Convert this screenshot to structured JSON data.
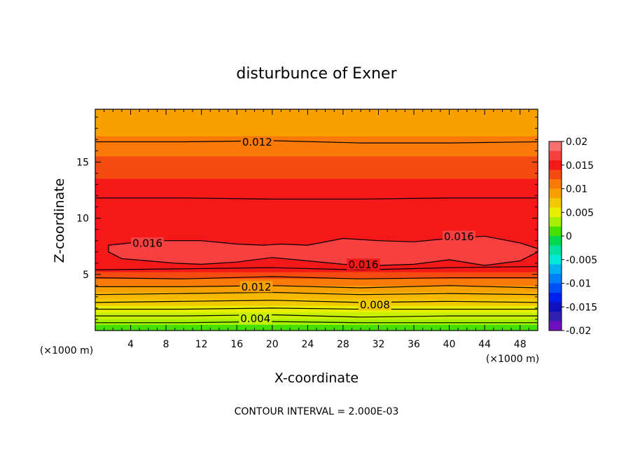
{
  "chart_data": {
    "type": "contour",
    "title": "disturbunce of Exner",
    "xlabel": "X-coordinate",
    "ylabel": "Z-coordinate",
    "x_unit": "(×1000 m)",
    "x_ticks": [
      4,
      8,
      12,
      16,
      20,
      24,
      28,
      32,
      36,
      40,
      44,
      48
    ],
    "y_ticks": [
      5,
      10,
      15
    ],
    "xlim": [
      0,
      50
    ],
    "ylim": [
      0,
      19.7
    ],
    "footer": "CONTOUR INTERVAL = 2.000E-03",
    "contour_interval": 0.002,
    "colorbar": {
      "ticks": [
        "0.02",
        "0.015",
        "0.01",
        "0.005",
        "0",
        "-0.005",
        "-0.01",
        "-0.015",
        "-0.02"
      ],
      "bands": [
        {
          "from": 0.018,
          "to": 0.02,
          "color": "#f67070"
        },
        {
          "from": 0.016,
          "to": 0.018,
          "color": "#f64040"
        },
        {
          "from": 0.014,
          "to": 0.016,
          "color": "#f41818"
        },
        {
          "from": 0.012,
          "to": 0.014,
          "color": "#f54a10"
        },
        {
          "from": 0.01,
          "to": 0.012,
          "color": "#f97a08"
        },
        {
          "from": 0.008,
          "to": 0.01,
          "color": "#f8a000"
        },
        {
          "from": 0.006,
          "to": 0.008,
          "color": "#f2c800"
        },
        {
          "from": 0.004,
          "to": 0.006,
          "color": "#e8f000"
        },
        {
          "from": 0.002,
          "to": 0.004,
          "color": "#a4f000"
        },
        {
          "from": 0.0,
          "to": 0.002,
          "color": "#46e000"
        },
        {
          "from": -0.002,
          "to": 0.0,
          "color": "#00d850"
        },
        {
          "from": -0.004,
          "to": -0.002,
          "color": "#00e0a0"
        },
        {
          "from": -0.006,
          "to": -0.004,
          "color": "#00e8d8"
        },
        {
          "from": -0.008,
          "to": -0.006,
          "color": "#00b0f0"
        },
        {
          "from": -0.01,
          "to": -0.008,
          "color": "#0080f8"
        },
        {
          "from": -0.012,
          "to": -0.01,
          "color": "#0050f8"
        },
        {
          "from": -0.014,
          "to": -0.012,
          "color": "#0020f0"
        },
        {
          "from": -0.016,
          "to": -0.014,
          "color": "#1010c0"
        },
        {
          "from": -0.018,
          "to": -0.016,
          "color": "#3020b0"
        },
        {
          "from": -0.02,
          "to": -0.018,
          "color": "#7010c0"
        }
      ]
    },
    "field_layers": [
      {
        "z_from": 17.3,
        "z_to": 19.7,
        "color": "#f8a000"
      },
      {
        "z_from": 15.5,
        "z_to": 17.3,
        "color": "#f97a08"
      },
      {
        "z_from": 13.5,
        "z_to": 15.5,
        "color": "#f54a10"
      },
      {
        "z_from": 5.2,
        "z_to": 13.5,
        "color": "#f41818"
      },
      {
        "z_from": 4.6,
        "z_to": 5.2,
        "color": "#f54a10"
      },
      {
        "z_from": 4.0,
        "z_to": 4.6,
        "color": "#f97a08"
      },
      {
        "z_from": 3.4,
        "z_to": 4.0,
        "color": "#f8a000"
      },
      {
        "z_from": 2.8,
        "z_to": 3.4,
        "color": "#f8b800"
      },
      {
        "z_from": 2.2,
        "z_to": 2.8,
        "color": "#f2c800"
      },
      {
        "z_from": 1.6,
        "z_to": 2.2,
        "color": "#e8f000"
      },
      {
        "z_from": 1.0,
        "z_to": 1.6,
        "color": "#c8f000"
      },
      {
        "z_from": 0.5,
        "z_to": 1.0,
        "color": "#a4f000"
      },
      {
        "z_from": 0.0,
        "z_to": 0.5,
        "color": "#46e000"
      }
    ],
    "high_region": {
      "value": 0.016,
      "color": "#f64040",
      "upper": [
        [
          1.5,
          7.6
        ],
        [
          4,
          7.8
        ],
        [
          8,
          8.0
        ],
        [
          12,
          8.0
        ],
        [
          16,
          7.7
        ],
        [
          19,
          7.6
        ],
        [
          21,
          7.7
        ],
        [
          24,
          7.6
        ],
        [
          28,
          8.2
        ],
        [
          32,
          8.0
        ],
        [
          36,
          7.9
        ],
        [
          40,
          8.2
        ],
        [
          44,
          8.4
        ],
        [
          48,
          7.8
        ],
        [
          50,
          7.3
        ]
      ],
      "lower": [
        [
          50,
          7.0
        ],
        [
          48,
          6.2
        ],
        [
          44,
          5.8
        ],
        [
          40,
          6.3
        ],
        [
          36,
          5.9
        ],
        [
          32,
          5.8
        ],
        [
          28,
          5.9
        ],
        [
          24,
          6.2
        ],
        [
          20,
          6.5
        ],
        [
          16,
          6.1
        ],
        [
          12,
          5.9
        ],
        [
          9,
          6.0
        ],
        [
          6,
          6.2
        ],
        [
          3,
          6.4
        ],
        [
          1.5,
          7.0
        ]
      ]
    },
    "contours": [
      {
        "value": 0.012,
        "label": "0.012",
        "points": [
          [
            0,
            16.8
          ],
          [
            10,
            16.8
          ],
          [
            20,
            16.9
          ],
          [
            30,
            16.7
          ],
          [
            40,
            16.7
          ],
          [
            50,
            16.8
          ]
        ]
      },
      {
        "points": [
          [
            0,
            11.8
          ],
          [
            10,
            11.8
          ],
          [
            20,
            11.7
          ],
          [
            30,
            11.7
          ],
          [
            40,
            11.8
          ],
          [
            50,
            11.8
          ]
        ]
      },
      {
        "value": 0.016,
        "label": "0.016",
        "points": [
          [
            0,
            5.4
          ],
          [
            10,
            5.5
          ],
          [
            20,
            5.6
          ],
          [
            30,
            5.4
          ],
          [
            40,
            5.6
          ],
          [
            50,
            5.7
          ]
        ]
      },
      {
        "points": [
          [
            0,
            4.7
          ],
          [
            10,
            4.6
          ],
          [
            20,
            4.8
          ],
          [
            30,
            4.6
          ],
          [
            40,
            4.7
          ],
          [
            50,
            4.7
          ]
        ]
      },
      {
        "value": 0.012,
        "label": "0.012",
        "points": [
          [
            0,
            3.9
          ],
          [
            10,
            3.9
          ],
          [
            20,
            4.0
          ],
          [
            30,
            3.8
          ],
          [
            40,
            4.0
          ],
          [
            50,
            3.8
          ]
        ]
      },
      {
        "points": [
          [
            0,
            3.2
          ],
          [
            10,
            3.3
          ],
          [
            20,
            3.4
          ],
          [
            30,
            3.2
          ],
          [
            40,
            3.3
          ],
          [
            50,
            3.2
          ]
        ]
      },
      {
        "value": 0.008,
        "label": "0.008",
        "points": [
          [
            0,
            2.5
          ],
          [
            10,
            2.6
          ],
          [
            20,
            2.7
          ],
          [
            30,
            2.5
          ],
          [
            40,
            2.6
          ],
          [
            50,
            2.5
          ]
        ]
      },
      {
        "points": [
          [
            0,
            1.9
          ],
          [
            10,
            1.9
          ],
          [
            20,
            2.0
          ],
          [
            30,
            1.9
          ],
          [
            40,
            1.9
          ],
          [
            50,
            1.9
          ]
        ]
      },
      {
        "value": 0.004,
        "label": "0.004",
        "points": [
          [
            0,
            1.3
          ],
          [
            10,
            1.3
          ],
          [
            20,
            1.4
          ],
          [
            30,
            1.2
          ],
          [
            40,
            1.3
          ],
          [
            50,
            1.3
          ]
        ]
      },
      {
        "points": [
          [
            0,
            0.7
          ],
          [
            10,
            0.7
          ],
          [
            20,
            0.8
          ],
          [
            30,
            0.7
          ],
          [
            40,
            0.7
          ],
          [
            50,
            0.7
          ]
        ]
      }
    ],
    "labels": [
      {
        "text": "0.012",
        "x": 18.3,
        "z": 16.8
      },
      {
        "text": "0.016",
        "x": 5.9,
        "z": 7.8
      },
      {
        "text": "0.016",
        "x": 41.1,
        "z": 8.4
      },
      {
        "text": "0.016",
        "x": 30.3,
        "z": 5.9
      },
      {
        "text": "0.012",
        "x": 18.2,
        "z": 3.9
      },
      {
        "text": "0.008",
        "x": 31.6,
        "z": 2.3
      },
      {
        "text": "0.004",
        "x": 18.1,
        "z": 1.1
      }
    ]
  }
}
